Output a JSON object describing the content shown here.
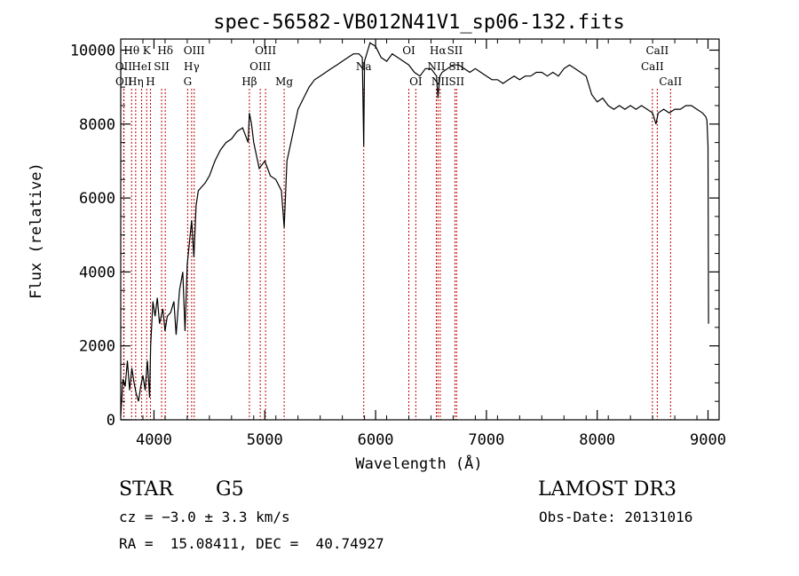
{
  "chart_data": {
    "type": "line",
    "title": "spec-56582-VB012N41V1_sp06-132.fits",
    "xlabel": "Wavelength (Å)",
    "ylabel": "Flux (relative)",
    "xlim": [
      3700,
      9100
    ],
    "ylim": [
      0,
      10300
    ],
    "xticks": [
      4000,
      5000,
      6000,
      7000,
      8000,
      9000
    ],
    "yticks": [
      0,
      2000,
      4000,
      6000,
      8000,
      10000
    ],
    "xtick_labels": [
      "4000",
      "5000",
      "6000",
      "7000",
      "8000",
      "9000"
    ],
    "ytick_labels": [
      "0",
      "2000",
      "4000",
      "6000",
      "8000",
      "10000"
    ],
    "series": [
      {
        "name": "spectrum",
        "x": [
          3700,
          3720,
          3740,
          3760,
          3780,
          3800,
          3820,
          3840,
          3860,
          3880,
          3900,
          3920,
          3940,
          3960,
          3970,
          3990,
          4010,
          4030,
          4050,
          4080,
          4100,
          4120,
          4150,
          4180,
          4200,
          4230,
          4260,
          4280,
          4300,
          4320,
          4340,
          4360,
          4380,
          4400,
          4430,
          4460,
          4500,
          4550,
          4600,
          4650,
          4700,
          4750,
          4800,
          4850,
          4861,
          4880,
          4900,
          4950,
          5000,
          5050,
          5100,
          5150,
          5175,
          5190,
          5200,
          5250,
          5300,
          5350,
          5400,
          5450,
          5500,
          5550,
          5600,
          5650,
          5700,
          5750,
          5800,
          5850,
          5880,
          5893,
          5900,
          5950,
          6000,
          6050,
          6100,
          6150,
          6200,
          6250,
          6300,
          6350,
          6400,
          6450,
          6500,
          6550,
          6563,
          6580,
          6600,
          6650,
          6700,
          6750,
          6800,
          6850,
          6900,
          6950,
          7000,
          7050,
          7100,
          7150,
          7200,
          7250,
          7300,
          7350,
          7400,
          7450,
          7500,
          7550,
          7600,
          7650,
          7700,
          7750,
          7800,
          7850,
          7900,
          7950,
          8000,
          8050,
          8100,
          8150,
          8200,
          8250,
          8300,
          8350,
          8400,
          8450,
          8500,
          8530,
          8550,
          8600,
          8650,
          8700,
          8750,
          8800,
          8850,
          8900,
          8950,
          8980,
          8990,
          9000,
          9005
        ],
        "y": [
          100,
          1100,
          900,
          1600,
          800,
          1400,
          1000,
          700,
          500,
          900,
          1200,
          800,
          1600,
          600,
          2000,
          3200,
          2800,
          3300,
          2600,
          3000,
          2400,
          2800,
          2900,
          3200,
          2300,
          3500,
          4000,
          2400,
          4200,
          4800,
          5400,
          4400,
          5800,
          6200,
          6300,
          6400,
          6600,
          7000,
          7300,
          7500,
          7600,
          7800,
          7900,
          7500,
          8300,
          8000,
          7500,
          6800,
          7000,
          6600,
          6500,
          6200,
          5200,
          6300,
          7000,
          7700,
          8400,
          8700,
          9000,
          9200,
          9300,
          9400,
          9500,
          9600,
          9700,
          9800,
          9900,
          9900,
          9800,
          7400,
          9700,
          10200,
          10100,
          9800,
          9700,
          9900,
          9800,
          9700,
          9600,
          9400,
          9300,
          9500,
          9500,
          9300,
          8700,
          9300,
          9400,
          9500,
          9600,
          9600,
          9500,
          9400,
          9500,
          9400,
          9300,
          9200,
          9200,
          9100,
          9200,
          9300,
          9200,
          9300,
          9300,
          9400,
          9400,
          9300,
          9400,
          9300,
          9500,
          9600,
          9500,
          9400,
          9300,
          8800,
          8600,
          8700,
          8500,
          8400,
          8500,
          8400,
          8500,
          8400,
          8500,
          8400,
          8300,
          8000,
          8300,
          8400,
          8300,
          8400,
          8400,
          8500,
          8500,
          8400,
          8300,
          8200,
          8100,
          7400,
          2600
        ]
      }
    ],
    "line_markers": [
      {
        "label": "Hθ",
        "x": 3798,
        "tier": 0
      },
      {
        "label": "OII",
        "x": 3727,
        "tier": 1
      },
      {
        "label": "OII",
        "x": 3729,
        "tier": 2
      },
      {
        "label": "K",
        "x": 3934,
        "tier": 0
      },
      {
        "label": "HeI",
        "x": 3889,
        "tier": 1
      },
      {
        "label": "Hη",
        "x": 3835,
        "tier": 2
      },
      {
        "label": "SII",
        "x": 4069,
        "tier": 1
      },
      {
        "label": "H",
        "x": 3968,
        "tier": 2
      },
      {
        "label": "Hδ",
        "x": 4102,
        "tier": 0
      },
      {
        "label": "OIII",
        "x": 4363,
        "tier": 0
      },
      {
        "label": "Hγ",
        "x": 4340,
        "tier": 1
      },
      {
        "label": "G",
        "x": 4304,
        "tier": 2
      },
      {
        "label": "OIII",
        "x": 5007,
        "tier": 0
      },
      {
        "label": "OIII",
        "x": 4959,
        "tier": 1
      },
      {
        "label": "Hβ",
        "x": 4861,
        "tier": 2
      },
      {
        "label": "Mg",
        "x": 5175,
        "tier": 2
      },
      {
        "label": "Na",
        "x": 5893,
        "tier": 1
      },
      {
        "label": "OI",
        "x": 6300,
        "tier": 0
      },
      {
        "label": "OI",
        "x": 6363,
        "tier": 2
      },
      {
        "label": "Hα",
        "x": 6563,
        "tier": 0
      },
      {
        "label": "SII",
        "x": 6716,
        "tier": 0
      },
      {
        "label": "NII",
        "x": 6548,
        "tier": 1
      },
      {
        "label": "SII",
        "x": 6731,
        "tier": 1
      },
      {
        "label": "NII",
        "x": 6583,
        "tier": 2
      },
      {
        "label": "SII",
        "x": 6731,
        "tier": 2
      },
      {
        "label": "CaII",
        "x": 8542,
        "tier": 0
      },
      {
        "label": "CaII",
        "x": 8498,
        "tier": 1
      },
      {
        "label": "CaII",
        "x": 8662,
        "tier": 2
      }
    ]
  },
  "info": {
    "object_class": "STAR",
    "subclass": "G5",
    "survey": "LAMOST DR3",
    "redshift": "cz = −3.0 ± 3.3 km/s",
    "obs_date": "Obs-Date: 20131016",
    "coords": "RA =  15.08411, DEC =  40.74927"
  },
  "colors": {
    "axes": "#000000",
    "spectrum": "#000000",
    "marker_line": "#c00000",
    "background": "#ffffff"
  }
}
